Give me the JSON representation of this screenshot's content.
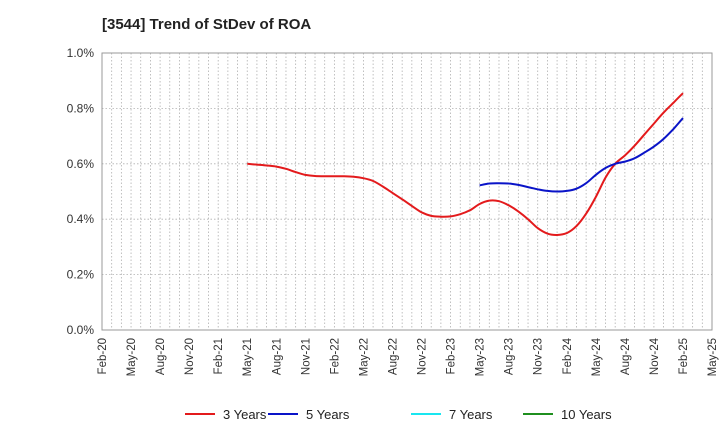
{
  "chart_data": {
    "type": "line",
    "title": "[3544]  Trend of StDev of ROA",
    "xlabel": "",
    "ylabel": "",
    "ylim": [
      0,
      1.0
    ],
    "y_ticks": [
      "0.0%",
      "0.2%",
      "0.4%",
      "0.6%",
      "0.8%",
      "1.0%"
    ],
    "y_tick_values": [
      0,
      0.2,
      0.4,
      0.6,
      0.8,
      1.0
    ],
    "x_tick_labels": [
      "Feb-20",
      "May-20",
      "Aug-20",
      "Nov-20",
      "Feb-21",
      "May-21",
      "Aug-21",
      "Nov-21",
      "Feb-22",
      "May-22",
      "Aug-22",
      "Nov-22",
      "Feb-23",
      "May-23",
      "Aug-23",
      "Nov-23",
      "Feb-24",
      "May-24",
      "Aug-24",
      "Nov-24",
      "Feb-25",
      "May-25"
    ],
    "grid": true,
    "legend_position": "bottom",
    "series": [
      {
        "name": "3 Years",
        "color": "#e31a1c",
        "x": [
          "May-21",
          "Jun-21",
          "Jul-21",
          "Aug-21",
          "Sep-21",
          "Oct-21",
          "Nov-21",
          "Dec-21",
          "Jan-22",
          "Feb-22",
          "Mar-22",
          "Apr-22",
          "May-22",
          "Jun-22",
          "Jul-22",
          "Aug-22",
          "Sep-22",
          "Oct-22",
          "Nov-22",
          "Dec-22",
          "Jan-23",
          "Feb-23",
          "Mar-23",
          "Apr-23",
          "May-23",
          "Jun-23",
          "Jul-23",
          "Aug-23",
          "Sep-23",
          "Oct-23",
          "Nov-23",
          "Dec-23",
          "Jan-24",
          "Feb-24",
          "Mar-24",
          "Apr-24",
          "May-24",
          "Jun-24",
          "Jul-24",
          "Aug-24",
          "Sep-24",
          "Oct-24",
          "Nov-24",
          "Dec-24",
          "Jan-25",
          "Feb-25"
        ],
        "values": [
          0.6,
          0.597,
          0.594,
          0.59,
          0.582,
          0.57,
          0.56,
          0.556,
          0.555,
          0.555,
          0.555,
          0.553,
          0.548,
          0.538,
          0.518,
          0.495,
          0.472,
          0.448,
          0.425,
          0.412,
          0.409,
          0.41,
          0.418,
          0.432,
          0.455,
          0.467,
          0.465,
          0.45,
          0.428,
          0.4,
          0.368,
          0.348,
          0.343,
          0.35,
          0.375,
          0.42,
          0.48,
          0.55,
          0.6,
          0.63,
          0.665,
          0.705,
          0.745,
          0.785,
          0.82,
          0.855
        ]
      },
      {
        "name": "5 Years",
        "color": "#0a14c8",
        "x": [
          "May-23",
          "Jun-23",
          "Jul-23",
          "Aug-23",
          "Sep-23",
          "Oct-23",
          "Nov-23",
          "Dec-23",
          "Jan-24",
          "Feb-24",
          "Mar-24",
          "Apr-24",
          "May-24",
          "Jun-24",
          "Jul-24",
          "Aug-24",
          "Sep-24",
          "Oct-24",
          "Nov-24",
          "Dec-24",
          "Jan-25",
          "Feb-25"
        ],
        "values": [
          0.522,
          0.529,
          0.53,
          0.529,
          0.524,
          0.516,
          0.508,
          0.502,
          0.5,
          0.502,
          0.51,
          0.53,
          0.56,
          0.585,
          0.6,
          0.608,
          0.62,
          0.64,
          0.662,
          0.69,
          0.725,
          0.765
        ]
      },
      {
        "name": "7 Years",
        "color": "#19e6f0",
        "x": [],
        "values": []
      },
      {
        "name": "10 Years",
        "color": "#1f8f1f",
        "x": [],
        "values": []
      }
    ]
  }
}
